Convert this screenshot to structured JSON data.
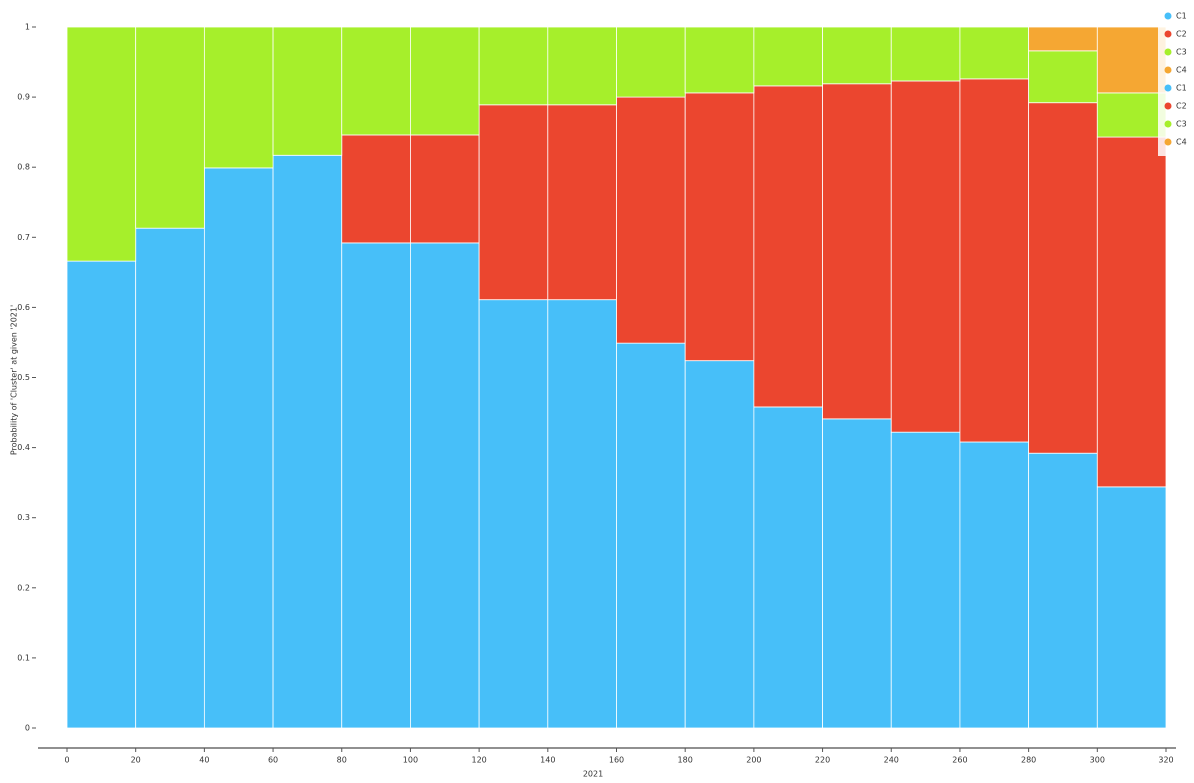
{
  "chart_data": {
    "type": "histogram_stacked",
    "xlabel": "2021",
    "ylabel": "Probability of 'Cluster' at given '2021'",
    "bins": [
      0,
      20,
      40,
      60,
      80,
      100,
      120,
      140,
      160,
      180,
      200,
      220,
      240,
      260,
      280,
      300,
      320
    ],
    "series": [
      {
        "name": "C1",
        "color": "#47bff9",
        "values": [
          0.666,
          0.713,
          0.799,
          0.817,
          0.692,
          0.692,
          0.611,
          0.611,
          0.549,
          0.524,
          0.458,
          0.441,
          0.422,
          0.408,
          0.392,
          0.344
        ]
      },
      {
        "name": "C2",
        "color": "#eb462f",
        "values": [
          0,
          0,
          0,
          0,
          0.154,
          0.154,
          0.278,
          0.278,
          0.351,
          0.382,
          0.458,
          0.478,
          0.501,
          0.518,
          0.5,
          0.499
        ]
      },
      {
        "name": "C3",
        "color": "#a6ef2b",
        "values": [
          0.334,
          0.287,
          0.201,
          0.183,
          0.154,
          0.154,
          0.111,
          0.111,
          0.1,
          0.094,
          0.084,
          0.081,
          0.077,
          0.074,
          0.074,
          0.063
        ]
      },
      {
        "name": "C4",
        "color": "#f5a733",
        "values": [
          0,
          0,
          0,
          0,
          0,
          0,
          0,
          0,
          0,
          0,
          0,
          0,
          0,
          0,
          0.034,
          0.094
        ]
      }
    ],
    "xlim": [
      0,
      320
    ],
    "xticks": [
      0,
      20,
      40,
      60,
      80,
      100,
      120,
      140,
      160,
      180,
      200,
      220,
      240,
      260,
      280,
      300,
      320
    ],
    "ylim": [
      0,
      1
    ],
    "yticks": [
      0,
      0.1,
      0.2,
      0.3,
      0.4,
      0.5,
      0.6,
      0.7,
      0.8,
      0.9,
      1
    ],
    "legend": "top-right"
  }
}
